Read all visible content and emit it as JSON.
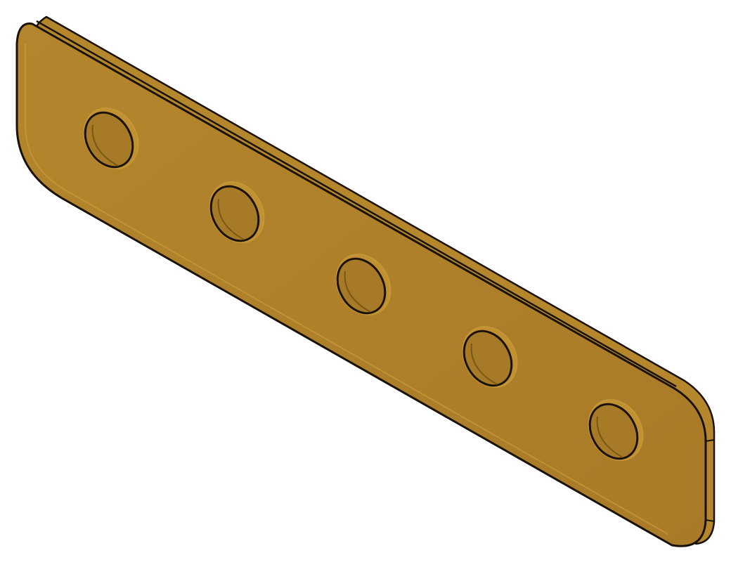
{
  "scene": {
    "object": "flat-bar-with-holes",
    "view": "isometric",
    "hole_count": 5,
    "background": "#ffffff",
    "colors": {
      "face": "#ad7f2a",
      "face_highlight": "#c49531",
      "edge_side": "#b88a2c",
      "edge_side_dark": "#8c6415",
      "outline": "#1a1208",
      "hole_wall": "#8f6718",
      "hole_shadow": "#6e4e10"
    }
  }
}
